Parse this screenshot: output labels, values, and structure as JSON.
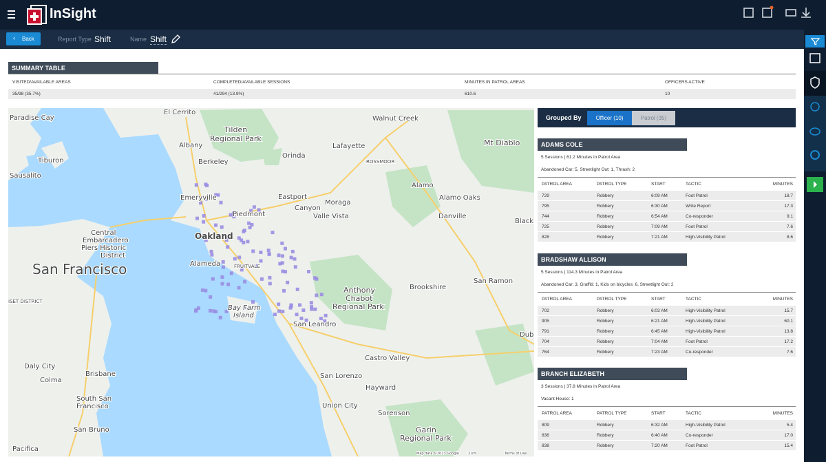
{
  "header": {
    "app_name": "InSight"
  },
  "toolbar": {
    "back": "Back",
    "report_type_label": "Report Type",
    "report_type": "Shift",
    "name_label": "Name",
    "name": "Shift"
  },
  "summary": {
    "title": "SUMMARY TABLE",
    "columns": [
      "VISITED/AVAILABLE AREAS",
      "COMPLETED/AVAILABLE SESSIONS",
      "MINUTES IN PATROL AREAS",
      "OFFICERS ACTIVE"
    ],
    "values": [
      "35/98  (35.7%)",
      "41/294  (13.9%)",
      "610.6",
      "10"
    ]
  },
  "map": {
    "labels": [
      "El Cerrito",
      "Walnut Creek",
      "Paradise Cay",
      "Tilden",
      "Regional Park",
      "Albany",
      "Orinda",
      "Lafayette",
      "Mt Diablo",
      "Tiburon",
      "Berkeley",
      "ROSSMOOR",
      "Sausalito",
      "Alamo",
      "Emeryville",
      "Eastport",
      "Moraga",
      "Alamo Oaks",
      "Canyon",
      "Piedmont",
      "Valle Vista",
      "Danville",
      "Black",
      "Central",
      "Embarcadero",
      "Piers Historic",
      "District",
      "Oakland",
      "San Francisco",
      "Alameda",
      "FRUITVALE",
      "Anthony",
      "Chabot",
      "Regional Park",
      "Brookshire",
      "San Ramon",
      "ISET DISTRICT",
      "Bay Farm",
      "Island",
      "San Leandro",
      "Dub",
      "Daly City",
      "Colma",
      "Brisbane",
      "Castro Valley",
      "San Lorenzo",
      "Hayward",
      "South San",
      "Francisco",
      "Union City",
      "Sorenson",
      "San Bruno",
      "Garin",
      "Regional Park",
      "Pacifica",
      "Map data ©2023 Google",
      "2 km",
      "Terms of Use"
    ]
  },
  "panel": {
    "grouped_by": "Grouped By",
    "tabs": [
      "Officer (10)",
      "Patrol (35)"
    ],
    "table_columns": [
      "PATROL AREA",
      "PATROL TYPE",
      "START",
      "TACTIC",
      "MINUTES"
    ],
    "officers": [
      {
        "name": "ADAMS COLE",
        "summary": "5 Sessions | 61.2 Minutes in Patrol Area",
        "details": "Abandoned Car: 5, Streetlight Out: 1, Thrash: 2",
        "rows": [
          [
            "729",
            "Robbery",
            "6:09 AM",
            "Foot Patrol",
            "18.7"
          ],
          [
            "795",
            "Robbery",
            "6:30 AM",
            "Write Report",
            "17.3"
          ],
          [
            "744",
            "Robbery",
            "6:54 AM",
            "Co-responder",
            "9.1"
          ],
          [
            "725",
            "Robbery",
            "7:09 AM",
            "Foot Patrol",
            "7.6"
          ],
          [
            "828",
            "Robbery",
            "7:21 AM",
            "High-Visibility Patrol",
            "8.6"
          ]
        ]
      },
      {
        "name": "BRADSHAW ALLISON",
        "summary": "5 Sessions | 114.3 Minutes in Patrol Area",
        "details": "Abandoned Car: 3, Graffiti: 1, Kids on bicycles: 6, Streetlight Out: 2",
        "rows": [
          [
            "702",
            "Robbery",
            "6:03 AM",
            "High-Visibility Patrol",
            "15.7"
          ],
          [
            "905",
            "Robbery",
            "6:21 AM",
            "High-Visibility Patrol",
            "60.1"
          ],
          [
            "791",
            "Robbery",
            "6:45 AM",
            "High-Visibility Patrol",
            "13.8"
          ],
          [
            "704",
            "Robbery",
            "7:04 AM",
            "Foot Patrol",
            "17.2"
          ],
          [
            "764",
            "Robbery",
            "7:23 AM",
            "Co-responder",
            "7.6"
          ]
        ]
      },
      {
        "name": "BRANCH ELIZABETH",
        "summary": "3 Sessions | 37.8 Minutes in Patrol Area",
        "details": "Vacant House: 1",
        "rows": [
          [
            "809",
            "Robbery",
            "6:32 AM",
            "High-Visibility Patrol",
            "5.4"
          ],
          [
            "836",
            "Robbery",
            "6:40 AM",
            "Co-responder",
            "17.0"
          ],
          [
            "838",
            "Robbery",
            "7:20 AM",
            "Foot Patrol",
            "15.4"
          ]
        ]
      }
    ]
  }
}
